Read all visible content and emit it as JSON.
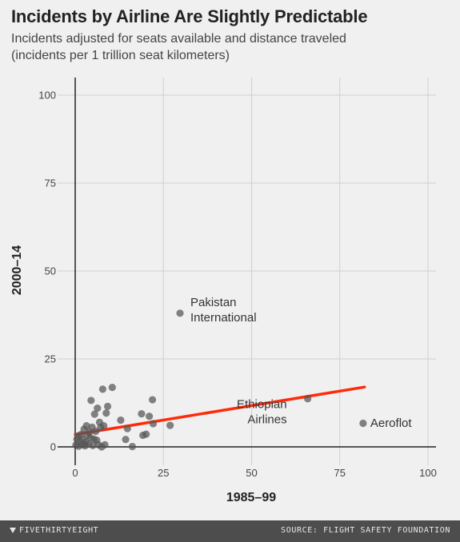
{
  "header": {
    "title": "Incidents by Airline Are Slightly Predictable",
    "subtitle_line1": "Incidents adjusted for seats available and distance traveled",
    "subtitle_line2": "(incidents per 1 trillion seat kilometers)"
  },
  "footer": {
    "brand": "FIVETHIRTYEIGHT",
    "source": "SOURCE: FLIGHT SAFETY FOUNDATION"
  },
  "chart_data": {
    "type": "scatter",
    "xlabel": "1985–99",
    "ylabel": "2000–14",
    "xlim": [
      0,
      100
    ],
    "ylim": [
      0,
      100
    ],
    "x_ticks": [
      0,
      25,
      50,
      75,
      100
    ],
    "y_ticks": [
      0,
      25,
      50,
      75,
      100
    ],
    "grid": true,
    "point_color": "#555555",
    "trend_color": "#ff2b0a",
    "points": [
      [
        0.2,
        0.5
      ],
      [
        0.5,
        2.2
      ],
      [
        0.8,
        3.1
      ],
      [
        1,
        0.2
      ],
      [
        1.3,
        1.5
      ],
      [
        1.6,
        3.5
      ],
      [
        2,
        0.6
      ],
      [
        2.2,
        2.1
      ],
      [
        2.5,
        5
      ],
      [
        2.8,
        0.3
      ],
      [
        3,
        1.4
      ],
      [
        3.2,
        6
      ],
      [
        3.5,
        3.3
      ],
      [
        3.8,
        0.8
      ],
      [
        4,
        4.2
      ],
      [
        4.3,
        2.6
      ],
      [
        4.5,
        13.2
      ],
      [
        4.8,
        5.6
      ],
      [
        5,
        0.4
      ],
      [
        5.3,
        2.2
      ],
      [
        5.5,
        9.3
      ],
      [
        5.8,
        4.4
      ],
      [
        6.1,
        1.9
      ],
      [
        6.3,
        11
      ],
      [
        6.6,
        0.6
      ],
      [
        6.9,
        7
      ],
      [
        7.2,
        5.5
      ],
      [
        7.5,
        0
      ],
      [
        7.8,
        16.4
      ],
      [
        8.1,
        6
      ],
      [
        8.4,
        0.6
      ],
      [
        8.8,
        9.6
      ],
      [
        9.2,
        11.5
      ],
      [
        10.5,
        16.9
      ],
      [
        12.9,
        7.6
      ],
      [
        14.3,
        2.1
      ],
      [
        14.8,
        5.2
      ],
      [
        16.2,
        0.1
      ],
      [
        18.8,
        9.4
      ],
      [
        19.2,
        3.3
      ],
      [
        20.1,
        3.6
      ],
      [
        21,
        8.7
      ],
      [
        21.9,
        13.4
      ],
      [
        22.1,
        6.6
      ],
      [
        26.9,
        6.1
      ],
      [
        29.7,
        38
      ],
      [
        65.9,
        13.7
      ],
      [
        81.6,
        6.7
      ]
    ],
    "trend": {
      "x": [
        0,
        82
      ],
      "y": [
        3.5,
        17
      ]
    },
    "annotations": [
      {
        "lines": [
          "Pakistan",
          "International"
        ],
        "x": 29.7,
        "y": 38
      },
      {
        "lines": [
          "Ethiopian",
          "Airlines"
        ],
        "x": 65.9,
        "y": 13.7
      },
      {
        "lines": [
          "Aeroflot"
        ],
        "x": 81.6,
        "y": 6.7
      }
    ]
  }
}
